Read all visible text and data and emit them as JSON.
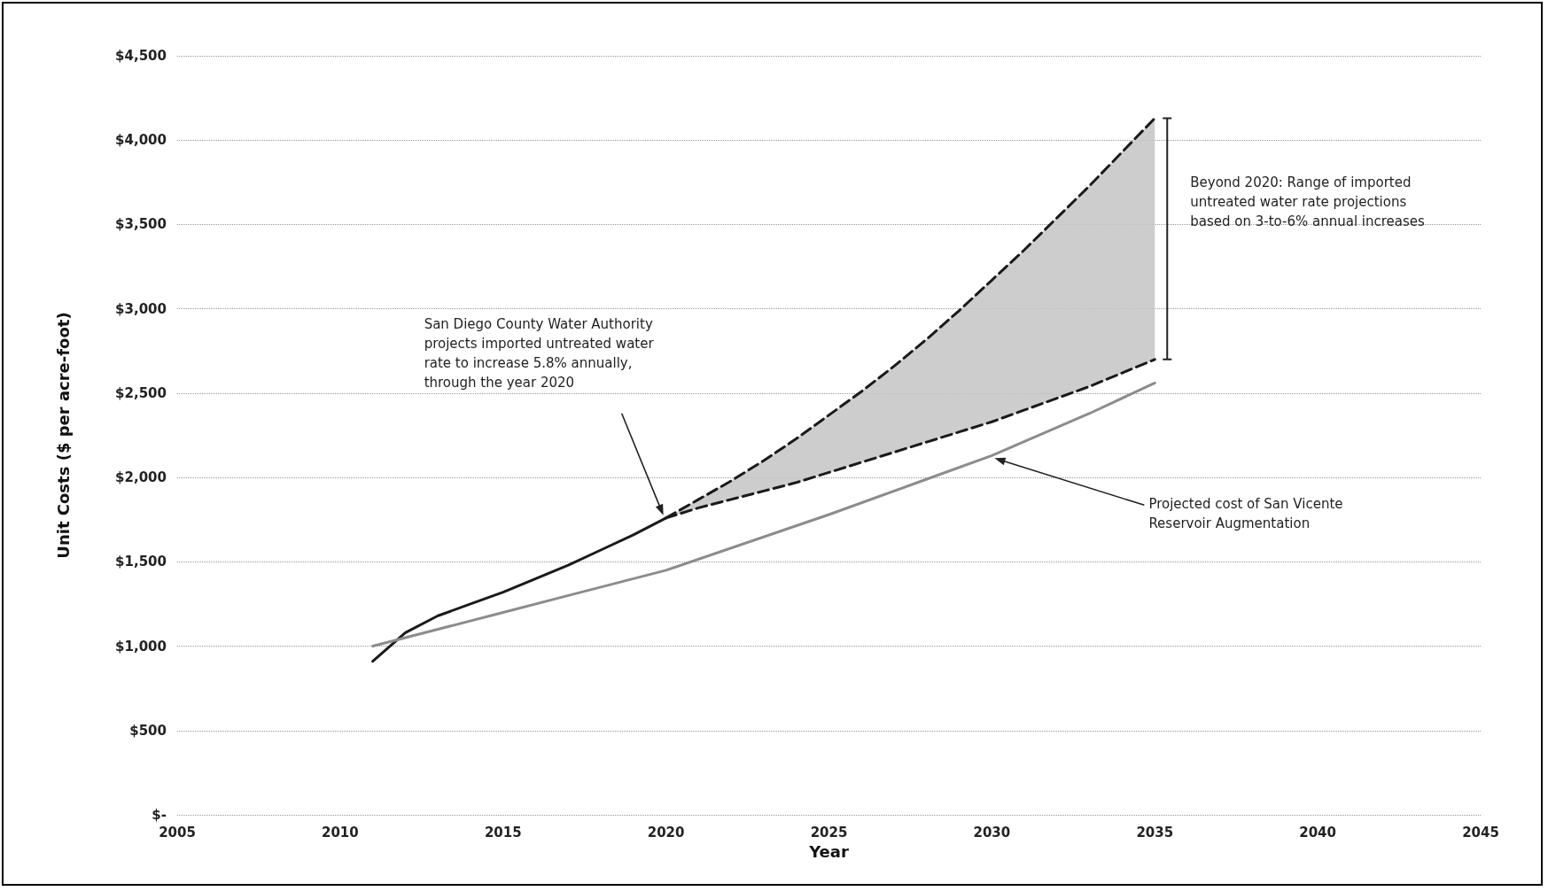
{
  "chart_data": {
    "type": "line",
    "xlabel": "Year",
    "ylabel": "Unit Costs ($ per acre-foot)",
    "xlim": [
      2005,
      2045
    ],
    "xticks": [
      2005,
      2010,
      2015,
      2020,
      2025,
      2030,
      2035,
      2040,
      2045
    ],
    "ylim": [
      0,
      4500
    ],
    "yticks": [
      {
        "value": 0,
        "label": "$-"
      },
      {
        "value": 500,
        "label": "$500"
      },
      {
        "value": 1000,
        "label": "$1,000"
      },
      {
        "value": 1500,
        "label": "$1,500"
      },
      {
        "value": 2000,
        "label": "$2,000"
      },
      {
        "value": 2500,
        "label": "$2,500"
      },
      {
        "value": 3000,
        "label": "$3,000"
      },
      {
        "value": 3500,
        "label": "$3,500"
      },
      {
        "value": 4000,
        "label": "$4,000"
      },
      {
        "value": 4500,
        "label": "$4,500"
      }
    ],
    "grid": "y",
    "marker": "none",
    "series": [
      {
        "color": "#1a1a1a",
        "line_style": "solid",
        "x": [
          2011,
          2012,
          2013,
          2014,
          2015,
          2016,
          2017,
          2018,
          2019,
          2020
        ],
        "values": [
          910,
          1080,
          1180,
          1250,
          1320,
          1400,
          1480,
          1570,
          1660,
          1760
        ]
      },
      {
        "color": "#1a1a1a",
        "line_style": "dashed",
        "x": [
          2020,
          2021,
          2022,
          2023,
          2024,
          2025,
          2026,
          2027,
          2028,
          2029,
          2030,
          2031,
          2032,
          2033,
          2034,
          2035
        ],
        "values": [
          1760,
          1870,
          1980,
          2100,
          2230,
          2370,
          2510,
          2660,
          2820,
          2990,
          3170,
          3350,
          3540,
          3730,
          3930,
          4130
        ],
        "lower": [
          1760,
          1820,
          1870,
          1920,
          1970,
          2030,
          2090,
          2150,
          2210,
          2270,
          2330,
          2400,
          2470,
          2540,
          2620,
          2700
        ],
        "upper": [
          1760,
          1870,
          1980,
          2100,
          2230,
          2370,
          2510,
          2660,
          2820,
          2990,
          3170,
          3350,
          3540,
          3730,
          3930,
          4130
        ]
      },
      {
        "color": "#1a1a1a",
        "line_style": "dashed",
        "x": [
          2020,
          2021,
          2022,
          2023,
          2024,
          2025,
          2026,
          2027,
          2028,
          2029,
          2030,
          2031,
          2032,
          2033,
          2034,
          2035
        ],
        "values": [
          1760,
          1820,
          1870,
          1920,
          1970,
          2030,
          2090,
          2150,
          2210,
          2270,
          2330,
          2400,
          2470,
          2540,
          2620,
          2700
        ]
      },
      {
        "color": "#8c8c8c",
        "line_style": "solid",
        "x": [
          2011,
          2013,
          2015,
          2017,
          2020,
          2025,
          2028,
          2030,
          2033,
          2035
        ],
        "values": [
          1000,
          1100,
          1200,
          1300,
          1450,
          1780,
          1990,
          2130,
          2380,
          2560
        ]
      }
    ],
    "annotations": [
      "San Diego County Water Authority projects imported untreated water rate to increase 5.8% annually, through the year 2020",
      "Projected cost of San Vicente Reservoir Augmentation",
      "Beyond 2020: Range of imported untreated water rate projections based on 3-to-6% annual increases"
    ]
  }
}
